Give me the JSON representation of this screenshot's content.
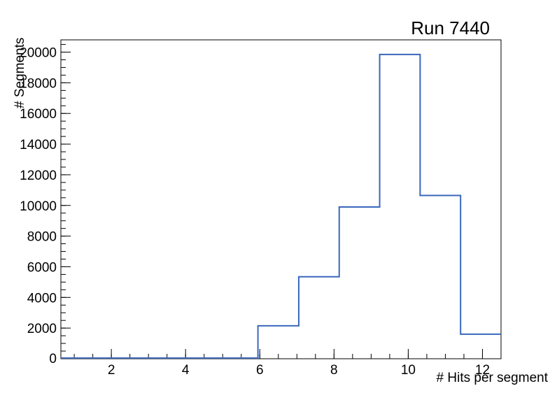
{
  "window": {
    "background": "#ffffff"
  },
  "title": "Run 7440",
  "chart_data": {
    "type": "bar",
    "subtype": "step-histogram",
    "title": "Run 7440",
    "xlabel": "# Hits per segment",
    "ylabel": "# Segments",
    "xlim": [
      0.64,
      12.5
    ],
    "ylim": [
      0,
      20800
    ],
    "bin_edges": [
      0.5,
      1.59,
      2.68,
      3.77,
      4.86,
      5.95,
      7.05,
      8.14,
      9.23,
      10.32,
      11.41,
      12.5
    ],
    "counts": [
      0,
      0,
      0,
      0,
      0,
      2150,
      5350,
      9900,
      19850,
      10650,
      1600
    ],
    "x_ticks_major": [
      2,
      4,
      6,
      8,
      10,
      12
    ],
    "x_tick_labels": [
      "2",
      "4",
      "6",
      "8",
      "10",
      "12"
    ],
    "x_minor_step": 0.5,
    "y_ticks_major": [
      0,
      2000,
      4000,
      6000,
      8000,
      10000,
      12000,
      14000,
      16000,
      18000,
      20000
    ],
    "y_tick_labels": [
      "0",
      "2000",
      "4000",
      "6000",
      "8000",
      "10000",
      "12000",
      "14000",
      "16000",
      "18000",
      "20000"
    ],
    "y_minor_step": 500,
    "line_color": "#3a67bc",
    "axis_color": "#000000",
    "grid": false,
    "legend_position": "none"
  }
}
